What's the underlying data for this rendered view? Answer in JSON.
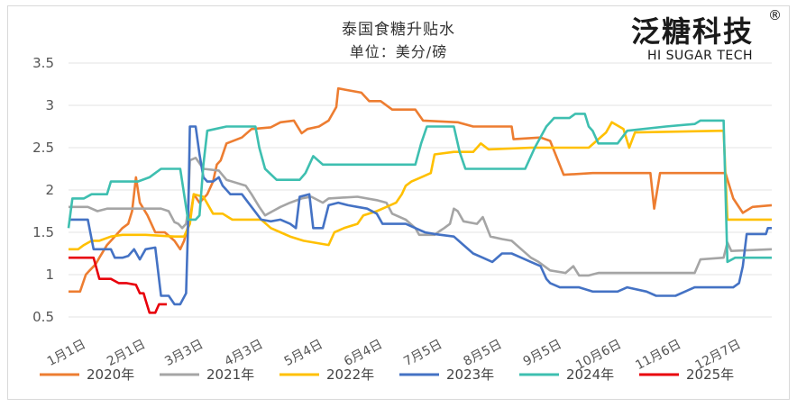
{
  "chart_data": {
    "type": "line",
    "title": "泰国食糖升贴水",
    "subtitle": "单位：美分/磅",
    "ylim": [
      0.5,
      3.5
    ],
    "yticks": [
      "0.5",
      "1",
      "1.5",
      "2",
      "2.5",
      "3",
      "3.5"
    ],
    "xlim": [
      0,
      365
    ],
    "xtick_labels": [
      "1月1日",
      "2月1日",
      "3月3日",
      "4月3日",
      "5月4日",
      "6月4日",
      "7月5日",
      "8月5日",
      "9月5日",
      "10月6日",
      "11月6日",
      "12月7日"
    ],
    "xtick_days": [
      0,
      31,
      61,
      92,
      123,
      154,
      185,
      216,
      247,
      278,
      309,
      340
    ],
    "grid": "horizontal",
    "legend_position": "bottom",
    "series": [
      {
        "name": "2020年",
        "color": "#ED7D31",
        "points": [
          [
            0,
            0.8
          ],
          [
            6,
            0.8
          ],
          [
            9,
            1.0
          ],
          [
            11,
            1.05
          ],
          [
            14,
            1.12
          ],
          [
            16,
            1.2
          ],
          [
            20,
            1.35
          ],
          [
            24,
            1.45
          ],
          [
            28,
            1.55
          ],
          [
            31,
            1.6
          ],
          [
            33,
            1.75
          ],
          [
            35,
            2.15
          ],
          [
            37,
            1.85
          ],
          [
            41,
            1.7
          ],
          [
            45,
            1.5
          ],
          [
            50,
            1.5
          ],
          [
            55,
            1.4
          ],
          [
            58,
            1.3
          ],
          [
            60,
            1.4
          ],
          [
            63,
            1.65
          ],
          [
            65,
            1.95
          ],
          [
            68,
            1.85
          ],
          [
            72,
            1.95
          ],
          [
            75,
            2.1
          ],
          [
            77,
            2.3
          ],
          [
            79,
            2.35
          ],
          [
            82,
            2.55
          ],
          [
            90,
            2.62
          ],
          [
            95,
            2.72
          ],
          [
            105,
            2.74
          ],
          [
            110,
            2.8
          ],
          [
            117,
            2.82
          ],
          [
            121,
            2.67
          ],
          [
            124,
            2.72
          ],
          [
            130,
            2.75
          ],
          [
            135,
            2.82
          ],
          [
            139,
            2.98
          ],
          [
            140,
            3.2
          ],
          [
            152,
            3.15
          ],
          [
            156,
            3.05
          ],
          [
            162,
            3.05
          ],
          [
            168,
            2.95
          ],
          [
            180,
            2.95
          ],
          [
            184,
            2.82
          ],
          [
            202,
            2.8
          ],
          [
            210,
            2.75
          ],
          [
            230,
            2.75
          ],
          [
            231,
            2.6
          ],
          [
            245,
            2.62
          ],
          [
            250,
            2.58
          ],
          [
            257,
            2.18
          ],
          [
            272,
            2.2
          ],
          [
            302,
            2.2
          ],
          [
            304,
            1.78
          ],
          [
            307,
            2.2
          ],
          [
            341,
            2.2
          ],
          [
            345,
            1.9
          ],
          [
            350,
            1.73
          ],
          [
            355,
            1.8
          ],
          [
            365,
            1.82
          ]
        ]
      },
      {
        "name": "2021年",
        "color": "#A5A5A5",
        "points": [
          [
            0,
            1.8
          ],
          [
            10,
            1.8
          ],
          [
            15,
            1.75
          ],
          [
            20,
            1.78
          ],
          [
            40,
            1.78
          ],
          [
            48,
            1.78
          ],
          [
            52,
            1.75
          ],
          [
            55,
            1.62
          ],
          [
            57,
            1.6
          ],
          [
            59,
            1.55
          ],
          [
            61,
            1.6
          ],
          [
            62,
            1.75
          ],
          [
            63,
            2.35
          ],
          [
            66,
            2.38
          ],
          [
            70,
            2.25
          ],
          [
            78,
            2.23
          ],
          [
            82,
            2.12
          ],
          [
            92,
            2.05
          ],
          [
            95,
            1.95
          ],
          [
            99,
            1.8
          ],
          [
            102,
            1.7
          ],
          [
            106,
            1.75
          ],
          [
            110,
            1.8
          ],
          [
            115,
            1.85
          ],
          [
            121,
            1.9
          ],
          [
            126,
            1.92
          ],
          [
            132,
            1.85
          ],
          [
            135,
            1.9
          ],
          [
            150,
            1.92
          ],
          [
            160,
            1.88
          ],
          [
            165,
            1.85
          ],
          [
            168,
            1.72
          ],
          [
            175,
            1.65
          ],
          [
            180,
            1.55
          ],
          [
            182,
            1.47
          ],
          [
            190,
            1.47
          ],
          [
            193,
            1.52
          ],
          [
            195,
            1.55
          ],
          [
            198,
            1.6
          ],
          [
            200,
            1.78
          ],
          [
            202,
            1.75
          ],
          [
            205,
            1.63
          ],
          [
            212,
            1.6
          ],
          [
            215,
            1.68
          ],
          [
            219,
            1.45
          ],
          [
            225,
            1.42
          ],
          [
            230,
            1.4
          ],
          [
            235,
            1.3
          ],
          [
            240,
            1.2
          ],
          [
            244,
            1.15
          ],
          [
            250,
            1.05
          ],
          [
            258,
            1.02
          ],
          [
            262,
            1.1
          ],
          [
            265,
            0.99
          ],
          [
            270,
            0.99
          ],
          [
            275,
            1.02
          ],
          [
            290,
            1.02
          ],
          [
            325,
            1.02
          ],
          [
            328,
            1.18
          ],
          [
            340,
            1.2
          ],
          [
            342,
            1.38
          ],
          [
            344,
            1.28
          ],
          [
            365,
            1.3
          ]
        ]
      },
      {
        "name": "2022年",
        "color": "#FFC000",
        "points": [
          [
            0,
            1.3
          ],
          [
            5,
            1.3
          ],
          [
            8,
            1.35
          ],
          [
            12,
            1.4
          ],
          [
            16,
            1.4
          ],
          [
            22,
            1.45
          ],
          [
            28,
            1.47
          ],
          [
            40,
            1.47
          ],
          [
            55,
            1.45
          ],
          [
            60,
            1.45
          ],
          [
            63,
            1.6
          ],
          [
            65,
            1.95
          ],
          [
            70,
            1.92
          ],
          [
            75,
            1.72
          ],
          [
            80,
            1.72
          ],
          [
            85,
            1.65
          ],
          [
            100,
            1.65
          ],
          [
            105,
            1.55
          ],
          [
            110,
            1.5
          ],
          [
            115,
            1.45
          ],
          [
            122,
            1.4
          ],
          [
            135,
            1.35
          ],
          [
            138,
            1.5
          ],
          [
            143,
            1.55
          ],
          [
            150,
            1.6
          ],
          [
            153,
            1.7
          ],
          [
            160,
            1.75
          ],
          [
            165,
            1.8
          ],
          [
            170,
            1.85
          ],
          [
            173,
            1.95
          ],
          [
            175,
            2.05
          ],
          [
            178,
            2.1
          ],
          [
            183,
            2.15
          ],
          [
            188,
            2.2
          ],
          [
            190,
            2.42
          ],
          [
            200,
            2.45
          ],
          [
            210,
            2.45
          ],
          [
            214,
            2.55
          ],
          [
            218,
            2.48
          ],
          [
            240,
            2.5
          ],
          [
            270,
            2.5
          ],
          [
            275,
            2.6
          ],
          [
            279,
            2.68
          ],
          [
            282,
            2.8
          ],
          [
            288,
            2.72
          ],
          [
            291,
            2.5
          ],
          [
            294,
            2.68
          ],
          [
            340,
            2.7
          ],
          [
            342,
            1.65
          ],
          [
            365,
            1.65
          ]
        ]
      },
      {
        "name": "2023年",
        "color": "#4472C4",
        "points": [
          [
            0,
            1.65
          ],
          [
            10,
            1.65
          ],
          [
            13,
            1.3
          ],
          [
            22,
            1.3
          ],
          [
            24,
            1.2
          ],
          [
            28,
            1.2
          ],
          [
            31,
            1.22
          ],
          [
            34,
            1.3
          ],
          [
            37,
            1.18
          ],
          [
            40,
            1.3
          ],
          [
            45,
            1.32
          ],
          [
            48,
            0.75
          ],
          [
            52,
            0.75
          ],
          [
            55,
            0.65
          ],
          [
            58,
            0.65
          ],
          [
            61,
            0.78
          ],
          [
            62,
            1.55
          ],
          [
            63,
            2.75
          ],
          [
            66,
            2.75
          ],
          [
            68,
            2.42
          ],
          [
            70,
            2.15
          ],
          [
            72,
            2.1
          ],
          [
            75,
            2.1
          ],
          [
            78,
            2.15
          ],
          [
            80,
            2.05
          ],
          [
            84,
            1.95
          ],
          [
            90,
            1.95
          ],
          [
            95,
            1.8
          ],
          [
            100,
            1.65
          ],
          [
            105,
            1.63
          ],
          [
            110,
            1.65
          ],
          [
            115,
            1.6
          ],
          [
            118,
            1.55
          ],
          [
            120,
            1.92
          ],
          [
            125,
            1.95
          ],
          [
            127,
            1.55
          ],
          [
            132,
            1.55
          ],
          [
            135,
            1.82
          ],
          [
            140,
            1.85
          ],
          [
            145,
            1.82
          ],
          [
            150,
            1.8
          ],
          [
            155,
            1.78
          ],
          [
            160,
            1.72
          ],
          [
            163,
            1.6
          ],
          [
            175,
            1.6
          ],
          [
            180,
            1.55
          ],
          [
            185,
            1.5
          ],
          [
            190,
            1.48
          ],
          [
            200,
            1.45
          ],
          [
            205,
            1.35
          ],
          [
            210,
            1.25
          ],
          [
            215,
            1.2
          ],
          [
            220,
            1.15
          ],
          [
            225,
            1.25
          ],
          [
            230,
            1.25
          ],
          [
            235,
            1.2
          ],
          [
            240,
            1.15
          ],
          [
            245,
            1.1
          ],
          [
            248,
            0.95
          ],
          [
            250,
            0.9
          ],
          [
            255,
            0.85
          ],
          [
            265,
            0.85
          ],
          [
            272,
            0.8
          ],
          [
            285,
            0.8
          ],
          [
            290,
            0.85
          ],
          [
            300,
            0.8
          ],
          [
            305,
            0.75
          ],
          [
            315,
            0.75
          ],
          [
            320,
            0.8
          ],
          [
            325,
            0.85
          ],
          [
            345,
            0.85
          ],
          [
            348,
            0.9
          ],
          [
            350,
            1.1
          ],
          [
            352,
            1.48
          ],
          [
            362,
            1.48
          ],
          [
            363,
            1.55
          ],
          [
            365,
            1.55
          ]
        ]
      },
      {
        "name": "2024年",
        "color": "#3EBFB0",
        "points": [
          [
            0,
            1.55
          ],
          [
            2,
            1.9
          ],
          [
            8,
            1.9
          ],
          [
            12,
            1.95
          ],
          [
            20,
            1.95
          ],
          [
            22,
            2.1
          ],
          [
            36,
            2.1
          ],
          [
            42,
            2.15
          ],
          [
            45,
            2.2
          ],
          [
            48,
            2.25
          ],
          [
            58,
            2.25
          ],
          [
            62,
            1.65
          ],
          [
            66,
            1.65
          ],
          [
            68,
            1.7
          ],
          [
            70,
            2.3
          ],
          [
            72,
            2.7
          ],
          [
            76,
            2.72
          ],
          [
            82,
            2.75
          ],
          [
            97,
            2.75
          ],
          [
            99,
            2.5
          ],
          [
            102,
            2.25
          ],
          [
            108,
            2.12
          ],
          [
            120,
            2.12
          ],
          [
            123,
            2.2
          ],
          [
            127,
            2.4
          ],
          [
            132,
            2.3
          ],
          [
            140,
            2.3
          ],
          [
            165,
            2.3
          ],
          [
            180,
            2.3
          ],
          [
            183,
            2.55
          ],
          [
            186,
            2.75
          ],
          [
            200,
            2.75
          ],
          [
            203,
            2.45
          ],
          [
            206,
            2.25
          ],
          [
            237,
            2.25
          ],
          [
            242,
            2.5
          ],
          [
            248,
            2.75
          ],
          [
            252,
            2.85
          ],
          [
            260,
            2.85
          ],
          [
            263,
            2.9
          ],
          [
            268,
            2.9
          ],
          [
            270,
            2.75
          ],
          [
            272,
            2.7
          ],
          [
            275,
            2.55
          ],
          [
            285,
            2.55
          ],
          [
            290,
            2.7
          ],
          [
            310,
            2.75
          ],
          [
            325,
            2.78
          ],
          [
            328,
            2.82
          ],
          [
            340,
            2.82
          ],
          [
            342,
            1.15
          ],
          [
            346,
            1.2
          ],
          [
            365,
            1.2
          ]
        ]
      },
      {
        "name": "2025年",
        "color": "#E8000B",
        "points": [
          [
            0,
            1.2
          ],
          [
            13,
            1.2
          ],
          [
            16,
            0.95
          ],
          [
            22,
            0.95
          ],
          [
            26,
            0.9
          ],
          [
            30,
            0.9
          ],
          [
            35,
            0.88
          ],
          [
            37,
            0.78
          ],
          [
            39,
            0.78
          ],
          [
            40,
            0.7
          ],
          [
            42,
            0.55
          ],
          [
            45,
            0.55
          ],
          [
            47,
            0.65
          ],
          [
            51,
            0.65
          ]
        ]
      }
    ]
  },
  "header": {
    "title": "泰国食糖升贴水",
    "subtitle": "单位：美分/磅"
  },
  "brand": {
    "name_cn": "泛糖科技",
    "name_en": "HI SUGAR TECH",
    "registered": "®"
  }
}
